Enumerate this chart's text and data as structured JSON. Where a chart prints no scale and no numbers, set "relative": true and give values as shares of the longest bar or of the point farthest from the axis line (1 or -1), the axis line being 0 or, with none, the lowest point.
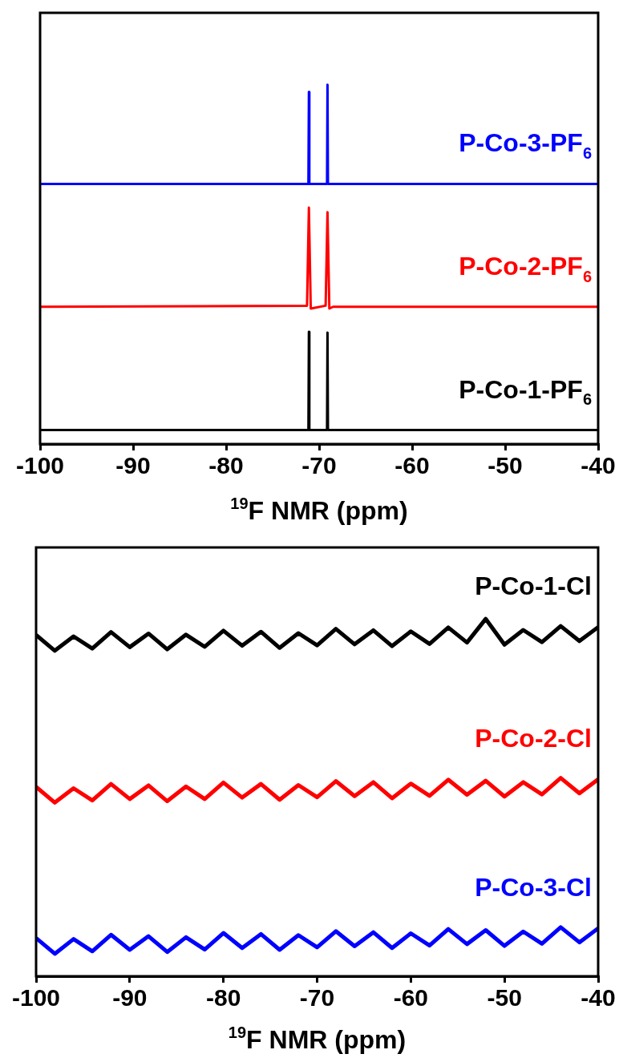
{
  "chart_data": [
    {
      "type": "line",
      "xlabel": "$^{19}$F NMR (ppm)",
      "xlim": [
        -100,
        -40
      ],
      "xticks": [
        -100,
        -90,
        -80,
        -70,
        -60,
        -50,
        -40
      ],
      "relative": true,
      "marker": "none",
      "series": [
        {
          "name": "P-Co-3-PF$_{6}$",
          "color": "#0000ff",
          "x": [
            -100,
            -71.15,
            -71.1,
            -71.05,
            -69.15,
            -69.1,
            -69.05,
            -40
          ],
          "values": [
            0.724,
            0.724,
            0.98,
            0.724,
            0.724,
            1,
            0.724,
            0.724
          ]
        },
        {
          "name": "P-Co-2-PF$_{6}$",
          "color": "#ff0000",
          "x": [
            -100,
            -71.3,
            -71.1,
            -70.9,
            -69.3,
            -69.1,
            -68.9,
            -68.5,
            -40
          ],
          "values": [
            0.382,
            0.385,
            0.658,
            0.377,
            0.385,
            0.645,
            0.377,
            0.382,
            0.382
          ]
        },
        {
          "name": "P-Co-1-PF$_{6}$",
          "color": "#000000",
          "x": [
            -100,
            -71.15,
            -71.1,
            -71.05,
            -69.15,
            -69.1,
            -69.05,
            -40
          ],
          "values": [
            0.039,
            0.039,
            0.312,
            0.039,
            0.039,
            0.31,
            0.039,
            0.039
          ]
        }
      ]
    },
    {
      "type": "line",
      "xlabel": "$^{19}$F NMR (ppm)",
      "xlim": [
        -100,
        -40
      ],
      "xticks": [
        -100,
        -90,
        -80,
        -70,
        -60,
        -50,
        -40
      ],
      "relative": true,
      "marker": "none",
      "x": [
        -100,
        -98,
        -96,
        -94,
        -92,
        -90,
        -88,
        -86,
        -84,
        -82,
        -80,
        -78,
        -76,
        -74,
        -72,
        -70,
        -68,
        -66,
        -64,
        -62,
        -60,
        -58,
        -56,
        -54,
        -52,
        -50,
        -48,
        -46,
        -44,
        -42,
        -40
      ],
      "series": [
        {
          "name": "P-Co-1-Cl",
          "color": "#000000",
          "values": [
            0.955,
            0.911,
            0.951,
            0.917,
            0.963,
            0.921,
            0.959,
            0.915,
            0.956,
            0.922,
            0.967,
            0.925,
            0.964,
            0.919,
            0.96,
            0.926,
            0.972,
            0.929,
            0.968,
            0.924,
            0.965,
            0.93,
            0.976,
            0.934,
            1,
            0.928,
            0.969,
            0.935,
            0.98,
            0.938,
            0.977
          ]
        },
        {
          "name": "P-Co-2-Cl",
          "color": "#ff0000",
          "values": [
            0.53,
            0.486,
            0.526,
            0.492,
            0.538,
            0.496,
            0.534,
            0.49,
            0.531,
            0.496,
            0.542,
            0.5,
            0.538,
            0.494,
            0.535,
            0.501,
            0.546,
            0.504,
            0.543,
            0.498,
            0.539,
            0.505,
            0.55,
            0.508,
            0.547,
            0.503,
            0.543,
            0.509,
            0.555,
            0.512,
            0.551
          ]
        },
        {
          "name": "P-Co-3-Cl",
          "color": "#0000ff",
          "values": [
            0.107,
            0.063,
            0.104,
            0.07,
            0.116,
            0.074,
            0.112,
            0.068,
            0.109,
            0.075,
            0.121,
            0.079,
            0.118,
            0.074,
            0.115,
            0.081,
            0.126,
            0.084,
            0.123,
            0.079,
            0.12,
            0.086,
            0.132,
            0.09,
            0.129,
            0.085,
            0.125,
            0.091,
            0.137,
            0.095,
            0.134
          ]
        }
      ]
    }
  ]
}
